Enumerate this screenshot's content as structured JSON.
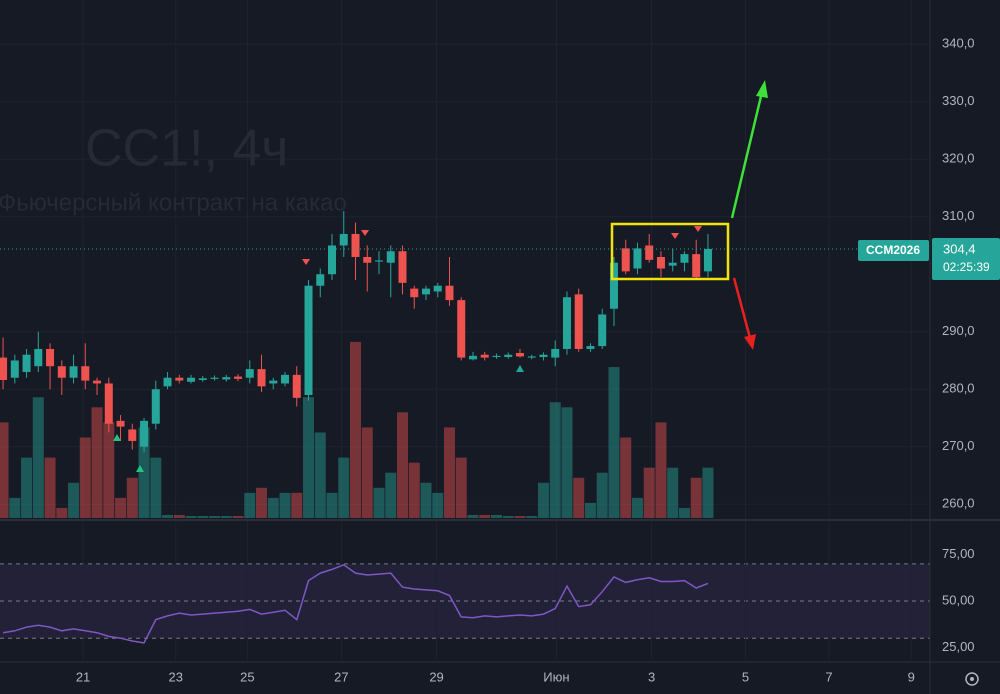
{
  "chart_data": [
    {
      "type": "candlestick",
      "title": "CC1!, 4ч",
      "subtitle": "Фьючерсный контракт на какао",
      "open": [
        285.5,
        282,
        283,
        284,
        287,
        284,
        282,
        284,
        281.5,
        281,
        274.5,
        273,
        270,
        274,
        280.5,
        282,
        281.3,
        281.6,
        281.8,
        281.7,
        282.2,
        282,
        283.5,
        281,
        281,
        282.5,
        279,
        298,
        300,
        305,
        307,
        303,
        302.2,
        302,
        304,
        297.5,
        296.5,
        297,
        298,
        295.5,
        285.2,
        286,
        285.6,
        285.6,
        286.3,
        285.5,
        285.6,
        285.5,
        287,
        296.5,
        287,
        287.5,
        294,
        304.5,
        301,
        305,
        303,
        301.5,
        302,
        303.5,
        300.5
      ],
      "high": [
        289,
        286,
        287,
        290,
        288,
        285,
        286,
        288,
        282,
        282,
        275.5,
        274,
        275,
        281.5,
        283,
        282.5,
        282.5,
        282.3,
        282.4,
        282.5,
        282.6,
        285,
        286,
        282,
        283,
        284,
        299,
        301,
        307,
        311,
        309,
        305,
        304,
        305,
        305,
        298,
        298,
        298.5,
        303,
        296,
        286.5,
        286.5,
        286.2,
        286.4,
        287,
        286,
        286.4,
        288.5,
        297,
        297.5,
        288,
        294,
        303,
        306,
        305.5,
        307,
        304,
        304.5,
        304,
        306,
        307
      ],
      "low": [
        280,
        281,
        282,
        283,
        280,
        279,
        281,
        280,
        279,
        272.5,
        271,
        269.5,
        269,
        273,
        280,
        281,
        281,
        281.3,
        281.5,
        281.3,
        281.4,
        281,
        279.5,
        280,
        280.5,
        277,
        278,
        296,
        299,
        303,
        299,
        297,
        300,
        296,
        296.5,
        294,
        295.5,
        296,
        294.5,
        285,
        285,
        285,
        285.3,
        285.3,
        285.5,
        285.2,
        285,
        284,
        286,
        286.5,
        286.5,
        287,
        291,
        300,
        300,
        302,
        299.5,
        300.5,
        300.5,
        299,
        299.5
      ],
      "close": [
        281.6,
        285,
        286,
        287,
        284,
        282,
        284,
        281.5,
        281,
        274,
        273.5,
        271,
        274.5,
        280,
        282,
        281.5,
        282,
        281.9,
        282,
        282.1,
        281.8,
        283.5,
        280.5,
        281.5,
        282.5,
        278.5,
        298,
        300,
        305,
        307,
        303,
        302,
        302.4,
        304,
        298.5,
        296,
        297.5,
        298,
        295.5,
        285.5,
        285.8,
        285.5,
        285.8,
        286,
        285.7,
        285.7,
        286,
        287,
        296,
        287,
        287.5,
        293,
        302,
        300.5,
        304.5,
        302.5,
        301,
        302,
        303.5,
        299.5,
        304.4
      ],
      "volume": [
        95,
        20,
        60,
        120,
        60,
        10,
        35,
        80,
        110,
        95,
        20,
        40,
        90,
        60,
        3,
        3,
        2,
        2,
        2,
        2,
        2,
        25,
        30,
        20,
        25,
        25,
        120,
        85,
        25,
        60,
        175,
        90,
        30,
        45,
        105,
        55,
        35,
        25,
        90,
        60,
        3,
        3,
        3,
        2,
        2,
        2,
        35,
        115,
        110,
        40,
        15,
        45,
        150,
        80,
        20,
        50,
        95,
        50,
        10,
        40,
        50
      ],
      "up_color": "#26a69a",
      "down_color": "#ef5350",
      "xlim": [
        -0.26,
        78.9
      ],
      "ylim": [
        257.6,
        347.7
      ],
      "yticks": [
        {
          "value": 260,
          "label": "260,0"
        },
        {
          "value": 270,
          "label": "270,0"
        },
        {
          "value": 280,
          "label": "280,0"
        },
        {
          "value": 290,
          "label": "290,0"
        },
        {
          "value": 310,
          "label": "310,0"
        },
        {
          "value": 320,
          "label": "320,0"
        },
        {
          "value": 330,
          "label": "330,0"
        },
        {
          "value": 340,
          "label": "340,0"
        }
      ],
      "grid": true,
      "symbol": "CCM2026",
      "last_price": 304.4,
      "last_price_label": "304,4",
      "countdown": "02:25:39"
    },
    {
      "type": "line",
      "values": [
        33,
        34,
        36,
        37,
        36,
        34,
        35,
        34,
        33,
        31,
        30,
        28.5,
        27.5,
        40,
        42,
        43.5,
        42.5,
        43,
        43.5,
        44,
        44.5,
        45.5,
        43,
        44,
        45,
        40,
        61,
        65,
        67,
        69.5,
        65,
        64,
        64.5,
        65,
        57.5,
        56.5,
        56,
        55.5,
        53,
        41.5,
        41,
        42,
        41.5,
        42,
        42.5,
        42,
        43,
        46,
        58,
        47,
        48,
        55,
        63,
        60,
        61.5,
        62.5,
        60.5,
        60.5,
        61,
        57,
        59.5
      ],
      "color": "#7e57c2",
      "band": [
        30,
        70
      ],
      "xlim": [
        -0.26,
        78.9
      ],
      "ylim": [
        18.3,
        92.5
      ],
      "yticks": [
        {
          "value": 25,
          "label": "25,00"
        },
        {
          "value": 50,
          "label": "50,00"
        },
        {
          "value": 75,
          "label": "75,00"
        }
      ],
      "xticks": [
        {
          "value": 6.81,
          "label": "21"
        },
        {
          "value": 14.7,
          "label": "23"
        },
        {
          "value": 20.8,
          "label": "25"
        },
        {
          "value": 28.8,
          "label": "27"
        },
        {
          "value": 36.9,
          "label": "29"
        },
        {
          "value": 47.1,
          "label": "Июн"
        },
        {
          "value": 55.2,
          "label": "3"
        },
        {
          "value": 63.2,
          "label": "5"
        },
        {
          "value": 70.3,
          "label": "7"
        },
        {
          "value": 77.3,
          "label": "9"
        }
      ]
    }
  ]
}
